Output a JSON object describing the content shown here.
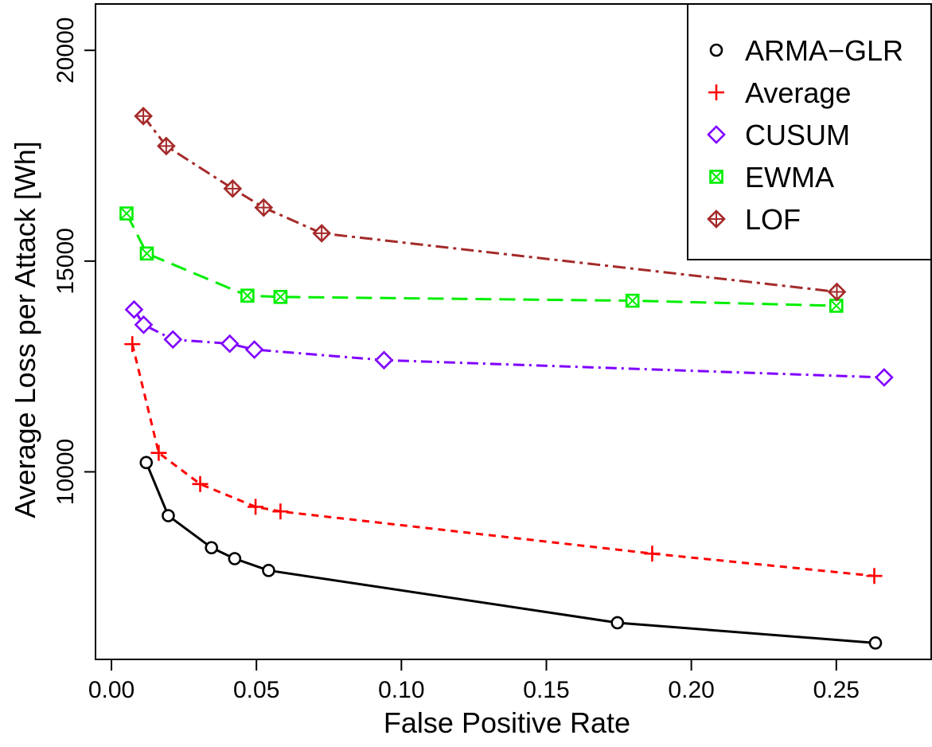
{
  "chart_data": {
    "type": "line",
    "title": "",
    "xlabel": "False Positive Rate",
    "ylabel": "Average Loss per Attack [Wh]",
    "xlim": [
      -0.0055,
      0.283
    ],
    "ylim": [
      5550,
      21100
    ],
    "x_ticks": [
      0.0,
      0.05,
      0.1,
      0.15,
      0.2,
      0.25
    ],
    "x_tick_labels": [
      "0.00",
      "0.05",
      "0.10",
      "0.15",
      "0.20",
      "0.25"
    ],
    "y_ticks": [
      10000,
      15000,
      20000
    ],
    "y_tick_labels": [
      "10000",
      "15000",
      "20000"
    ],
    "grid": false,
    "legend_position": "top-right",
    "series": [
      {
        "name": "ARMA−GLR",
        "color": "#000000",
        "marker": "circle",
        "line_style": "solid",
        "points": [
          [
            0.012,
            10220
          ],
          [
            0.0196,
            8960
          ],
          [
            0.0345,
            8200
          ],
          [
            0.0425,
            7940
          ],
          [
            0.0542,
            7660
          ],
          [
            0.1745,
            6420
          ],
          [
            0.2635,
            5940
          ]
        ]
      },
      {
        "name": "Average",
        "color": "#ff0000",
        "marker": "plus",
        "line_style": "dashed",
        "points": [
          [
            0.0072,
            13030
          ],
          [
            0.0163,
            10450
          ],
          [
            0.0306,
            9710
          ],
          [
            0.0497,
            9170
          ],
          [
            0.0583,
            9060
          ],
          [
            0.1865,
            8060
          ],
          [
            0.2631,
            7530
          ]
        ]
      },
      {
        "name": "CUSUM",
        "color": "#7f00ff",
        "marker": "diamond",
        "line_style": "dotdash",
        "points": [
          [
            0.0078,
            13850
          ],
          [
            0.0111,
            13490
          ],
          [
            0.0212,
            13140
          ],
          [
            0.0408,
            13040
          ],
          [
            0.0493,
            12900
          ],
          [
            0.094,
            12650
          ],
          [
            0.2665,
            12240
          ]
        ]
      },
      {
        "name": "EWMA",
        "color": "#00ee00",
        "marker": "boxed-x",
        "line_style": "longdash",
        "points": [
          [
            0.0052,
            16130
          ],
          [
            0.0122,
            15180
          ],
          [
            0.0469,
            14180
          ],
          [
            0.0583,
            14150
          ],
          [
            0.1797,
            14060
          ],
          [
            0.25,
            13940
          ]
        ]
      },
      {
        "name": "LOF",
        "color": "#a52a2a",
        "marker": "diamond-plus",
        "line_style": "twodash",
        "points": [
          [
            0.011,
            18440
          ],
          [
            0.0189,
            17730
          ],
          [
            0.0418,
            16720
          ],
          [
            0.0525,
            16270
          ],
          [
            0.0725,
            15660
          ],
          [
            0.2502,
            14270
          ]
        ]
      }
    ]
  }
}
